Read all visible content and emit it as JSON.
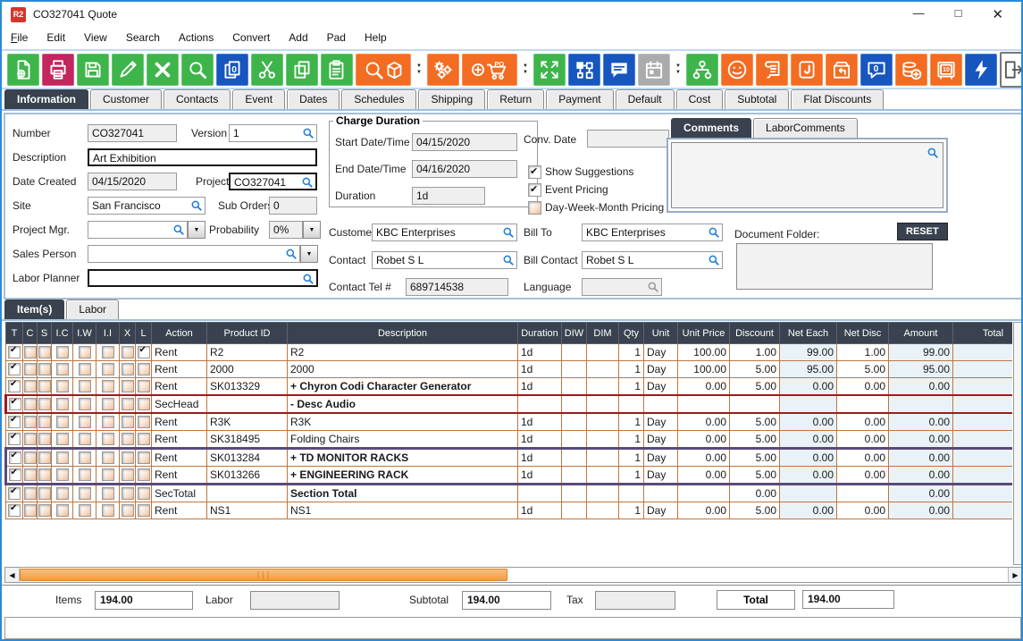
{
  "window": {
    "title": "CO327041 Quote",
    "logo_text": "R2"
  },
  "menu": {
    "items": [
      {
        "label": "File",
        "alt": true
      },
      {
        "label": "Edit"
      },
      {
        "label": "View"
      },
      {
        "label": "Search"
      },
      {
        "label": "Actions"
      },
      {
        "label": "Convert"
      },
      {
        "label": "Add"
      },
      {
        "label": "Pad"
      },
      {
        "label": "Help"
      }
    ]
  },
  "toolbar": {
    "buttons": [
      {
        "name": "new-document-button",
        "icon": "new-document",
        "color": "#3DB54A"
      },
      {
        "name": "print-button",
        "icon": "print",
        "color": "#C2265C"
      },
      {
        "name": "save-button",
        "icon": "save",
        "color": "#3DB54A"
      },
      {
        "name": "edit-button",
        "icon": "edit",
        "color": "#3DB54A"
      },
      {
        "name": "delete-button",
        "icon": "delete",
        "color": "#3DB54A"
      },
      {
        "name": "search-button",
        "icon": "search",
        "color": "#3DB54A"
      },
      {
        "name": "copy-special-button",
        "icon": "copy-zero",
        "color": "#1656BE"
      },
      {
        "name": "cut-button",
        "icon": "cut",
        "color": "#3DB54A"
      },
      {
        "name": "copy-button",
        "icon": "copy",
        "color": "#3DB54A"
      },
      {
        "name": "paste-button",
        "icon": "paste",
        "color": "#3DB54A"
      },
      {
        "name": "product-search-button",
        "icon": "product-search",
        "color": "#F36C21",
        "wide": true
      },
      {
        "type": "dropdown",
        "name": "product-search-dropdown"
      },
      {
        "name": "settings-gears-button",
        "icon": "gears",
        "color": "#F36C21"
      },
      {
        "name": "add-po-cart-button",
        "icon": "add-po",
        "color": "#F36C21",
        "wide": true
      },
      {
        "type": "dropdown",
        "name": "add-po-dropdown"
      },
      {
        "name": "expand-button",
        "icon": "expand",
        "color": "#3DB54A"
      },
      {
        "name": "workflow-button",
        "icon": "flowchart",
        "color": "#1656BE"
      },
      {
        "name": "comment-button",
        "icon": "comment",
        "color": "#1656BE"
      },
      {
        "name": "calendar-button",
        "icon": "calendar",
        "color": "#ABABAB",
        "disabled": true
      },
      {
        "type": "dropdown",
        "name": "calendar-dropdown"
      },
      {
        "name": "hierarchy-button",
        "icon": "hierarchy",
        "color": "#3DB54A"
      },
      {
        "name": "smiley-button",
        "icon": "smiley",
        "color": "#F36C21"
      },
      {
        "name": "notes-scroll-button",
        "icon": "scroll",
        "color": "#F36C21"
      },
      {
        "name": "journal-button",
        "icon": "journal",
        "color": "#F36C21"
      },
      {
        "name": "exchange-return-button",
        "icon": "exchange",
        "color": "#F36C21"
      },
      {
        "name": "message-zero-button",
        "icon": "bubble-zero",
        "color": "#1656BE"
      },
      {
        "name": "add-funds-button",
        "icon": "coins-add",
        "color": "#F36C21"
      },
      {
        "name": "vault-button",
        "icon": "vault",
        "color": "#F36C21"
      },
      {
        "name": "quick-action-button",
        "icon": "lightning",
        "color": "#1656BE"
      }
    ]
  },
  "tabs": {
    "active": 0,
    "items": [
      "Information",
      "Customer",
      "Contacts",
      "Event",
      "Dates",
      "Schedules",
      "Shipping",
      "Return",
      "Payment",
      "Default",
      "Cost",
      "Subtotal",
      "Flat Discounts"
    ]
  },
  "form": {
    "number": {
      "label": "Number",
      "value": "CO327041"
    },
    "version": {
      "label": "Version",
      "value": "1"
    },
    "description": {
      "label": "Description",
      "value": "Art Exhibition"
    },
    "date_created": {
      "label": "Date Created",
      "value": "04/15/2020"
    },
    "project": {
      "label": "Project",
      "value": "CO327041"
    },
    "site": {
      "label": "Site",
      "value": "San Francisco"
    },
    "sub_orders": {
      "label": "Sub Orders",
      "value": "0"
    },
    "project_mgr": {
      "label": "Project Mgr.",
      "value": ""
    },
    "probability": {
      "label": "Probability",
      "value": "0%"
    },
    "sales_person": {
      "label": "Sales Person",
      "value": ""
    },
    "labor_planner": {
      "label": "Labor Planner",
      "value": ""
    },
    "charge_duration": {
      "legend": "Charge Duration",
      "start_label": "Start Date/Time",
      "start": "04/15/2020",
      "end_label": "End Date/Time",
      "end": "04/16/2020",
      "duration_label": "Duration",
      "duration": "1d"
    },
    "conv_date": {
      "label": "Conv. Date",
      "value": ""
    },
    "checkboxes": [
      {
        "label": "Show Suggestions",
        "checked": true
      },
      {
        "label": "Event Pricing",
        "checked": true
      },
      {
        "label": "Day-Week-Month Pricing",
        "checked": false
      }
    ],
    "customer": {
      "label": "Customer",
      "value": "KBC Enterprises"
    },
    "bill_to": {
      "label": "Bill To",
      "value": "KBC Enterprises"
    },
    "contact": {
      "label": "Contact",
      "value": "Robet S L"
    },
    "bill_contact": {
      "label": "Bill Contact",
      "value": "Robet S L"
    },
    "contact_tel": {
      "label": "Contact Tel #",
      "value": "689714538"
    },
    "language": {
      "label": "Language",
      "value": ""
    }
  },
  "comments": {
    "tabs": [
      "Comments",
      "LaborComments"
    ],
    "active": 0,
    "text": "",
    "document_folder_label": "Document Folder:",
    "reset_label": "RESET",
    "folder_text": ""
  },
  "items_tabs": {
    "active": 0,
    "items": [
      "Item(s)",
      "Labor"
    ]
  },
  "table": {
    "columns": [
      "T",
      "C",
      "S",
      "I.C",
      "I.W",
      "I.I",
      "X",
      "L",
      "Action",
      "Product ID",
      "Description",
      "Duration",
      "DIW",
      "DIM",
      "Qty",
      "Unit",
      "Unit Price",
      "Discount",
      "Net Each",
      "Net Disc",
      "Amount",
      "Total"
    ],
    "rows": [
      {
        "checks": [
          1,
          0,
          0,
          0,
          0,
          0,
          0,
          1
        ],
        "action": "Rent",
        "product": "R2",
        "desc": "R2",
        "bold": false,
        "duration": "1d",
        "diw": "",
        "dim": "",
        "qty": "1",
        "unit": "Day",
        "unit_price": "100.00",
        "discount": "1.00",
        "net_each": "99.00",
        "net_disc": "1.00",
        "amount": "99.00",
        "total": "",
        "frame": ""
      },
      {
        "checks": [
          1,
          0,
          0,
          0,
          0,
          0,
          0,
          0
        ],
        "action": "Rent",
        "product": "2000",
        "desc": "2000",
        "bold": false,
        "duration": "1d",
        "diw": "",
        "dim": "",
        "qty": "1",
        "unit": "Day",
        "unit_price": "100.00",
        "discount": "5.00",
        "net_each": "95.00",
        "net_disc": "5.00",
        "amount": "95.00",
        "total": "",
        "frame": ""
      },
      {
        "checks": [
          1,
          0,
          0,
          0,
          0,
          0,
          0,
          0
        ],
        "action": "Rent",
        "product": "SK013329",
        "desc": "+  Chyron Codi Character Generator",
        "bold": true,
        "duration": "1d",
        "diw": "",
        "dim": "",
        "qty": "1",
        "unit": "Day",
        "unit_price": "0.00",
        "discount": "5.00",
        "net_each": "0.00",
        "net_disc": "0.00",
        "amount": "0.00",
        "total": "",
        "frame": ""
      },
      {
        "checks": [
          1,
          0,
          0,
          0,
          0,
          0,
          0,
          0
        ],
        "action": "SecHead",
        "product": "",
        "desc": "-  Desc Audio",
        "bold": true,
        "duration": "",
        "diw": "",
        "dim": "",
        "qty": "",
        "unit": "",
        "unit_price": "",
        "discount": "",
        "net_each": "",
        "net_disc": "",
        "amount": "",
        "total": "",
        "frame": "red"
      },
      {
        "checks": [
          1,
          0,
          0,
          0,
          0,
          0,
          0,
          0
        ],
        "action": "Rent",
        "product": "R3K",
        "desc": "R3K",
        "bold": false,
        "duration": "1d",
        "diw": "",
        "dim": "",
        "qty": "1",
        "unit": "Day",
        "unit_price": "0.00",
        "discount": "5.00",
        "net_each": "0.00",
        "net_disc": "0.00",
        "amount": "0.00",
        "total": "",
        "frame": ""
      },
      {
        "checks": [
          1,
          0,
          0,
          0,
          0,
          0,
          0,
          0
        ],
        "action": "Rent",
        "product": "SK318495",
        "desc": "Folding Chairs",
        "bold": false,
        "duration": "1d",
        "diw": "",
        "dim": "",
        "qty": "1",
        "unit": "Day",
        "unit_price": "0.00",
        "discount": "5.00",
        "net_each": "0.00",
        "net_disc": "0.00",
        "amount": "0.00",
        "total": "",
        "frame": ""
      },
      {
        "checks": [
          1,
          0,
          0,
          0,
          0,
          0,
          0,
          0
        ],
        "action": "Rent",
        "product": "SK013284",
        "desc": "+  TD MONITOR RACKS",
        "bold": true,
        "duration": "1d",
        "diw": "",
        "dim": "",
        "qty": "1",
        "unit": "Day",
        "unit_price": "0.00",
        "discount": "5.00",
        "net_each": "0.00",
        "net_disc": "0.00",
        "amount": "0.00",
        "total": "",
        "frame": "ptop"
      },
      {
        "checks": [
          1,
          0,
          0,
          0,
          0,
          0,
          0,
          0
        ],
        "action": "Rent",
        "product": "SK013266",
        "desc": "+  ENGINEERING RACK",
        "bold": true,
        "duration": "1d",
        "diw": "",
        "dim": "",
        "qty": "1",
        "unit": "Day",
        "unit_price": "0.00",
        "discount": "5.00",
        "net_each": "0.00",
        "net_disc": "0.00",
        "amount": "0.00",
        "total": "",
        "frame": "pbot"
      },
      {
        "checks": [
          1,
          0,
          0,
          0,
          0,
          0,
          0,
          0
        ],
        "action": "SecTotal",
        "product": "",
        "desc": "Section Total",
        "bold": true,
        "duration": "",
        "diw": "",
        "dim": "",
        "qty": "",
        "unit": "",
        "unit_price": "",
        "discount": "0.00",
        "net_each": "",
        "net_disc": "",
        "amount": "0.00",
        "total": "",
        "frame": ""
      },
      {
        "checks": [
          1,
          0,
          0,
          0,
          0,
          0,
          0,
          0
        ],
        "action": "Rent",
        "product": "NS1",
        "desc": "NS1",
        "bold": false,
        "duration": "1d",
        "diw": "",
        "dim": "",
        "qty": "1",
        "unit": "Day",
        "unit_price": "0.00",
        "discount": "5.00",
        "net_each": "0.00",
        "net_disc": "0.00",
        "amount": "0.00",
        "total": "",
        "frame": ""
      }
    ]
  },
  "totals": {
    "items_label": "Items",
    "items": "194.00",
    "labor_label": "Labor",
    "labor": "",
    "subtotal_label": "Subtotal",
    "subtotal": "194.00",
    "tax_label": "Tax",
    "tax": "",
    "total_label": "Total",
    "total": "194.00"
  }
}
